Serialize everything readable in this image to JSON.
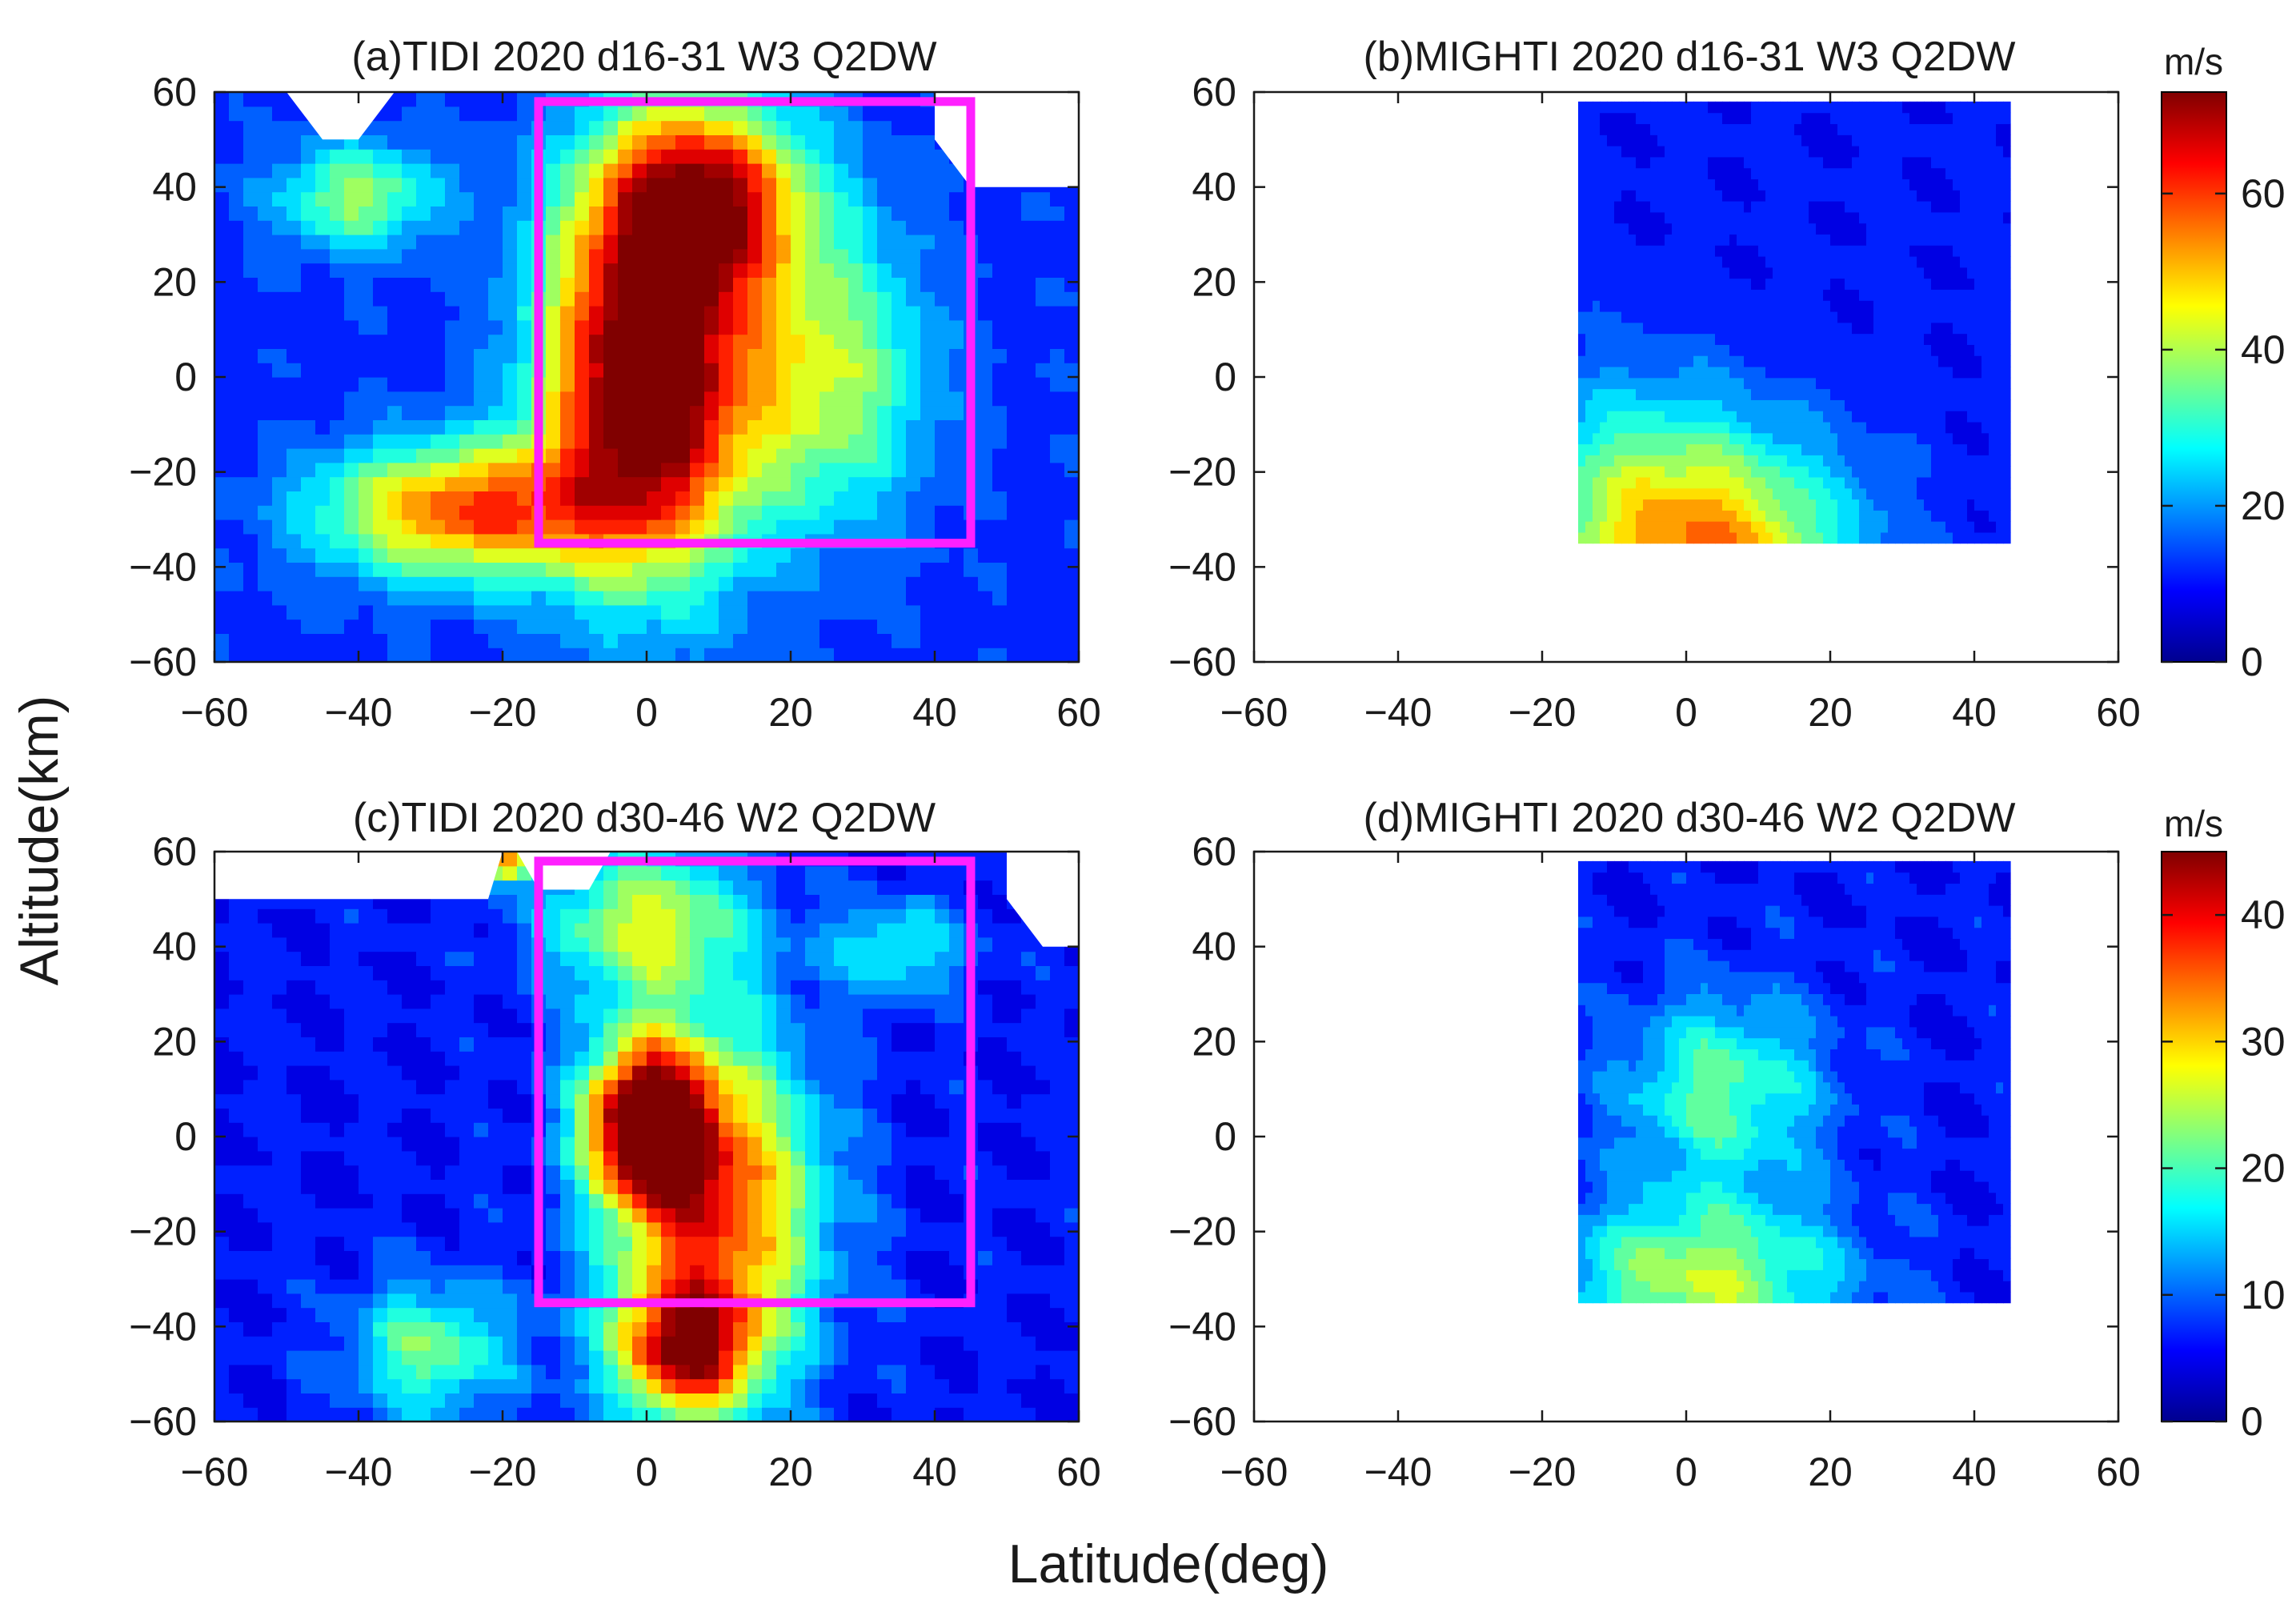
{
  "figure": {
    "shared_xlabel": "Latitude(deg)",
    "shared_ylabel": "Altitude(km)"
  },
  "chart_data": [
    {
      "type": "heatmap",
      "panel": "a",
      "title": "(a)TIDI 2020 d16-31 W3 Q2DW",
      "xlabel": "Latitude(deg)",
      "ylabel": "Altitude(km)",
      "xlim": [
        -60,
        60
      ],
      "ylim": [
        -60,
        60
      ],
      "xticks": [
        "−60",
        "−40",
        "−20",
        "0",
        "20",
        "40",
        "60"
      ],
      "yticks": [
        "60",
        "40",
        "20",
        "0",
        "−20",
        "−40",
        "−60"
      ],
      "colorbar": {
        "unit": "m/s",
        "range": [
          0,
          73
        ],
        "ticks": [
          "60",
          "40",
          "20",
          "0"
        ]
      },
      "blobs": [
        {
          "x": 0,
          "y": 0,
          "sx": 10,
          "sy": 28,
          "amp": 72
        },
        {
          "x": 8,
          "y": 38,
          "sx": 10,
          "sy": 14,
          "amp": 50
        },
        {
          "x": -25,
          "y": -28,
          "sx": 14,
          "sy": 10,
          "amp": 46
        },
        {
          "x": 25,
          "y": 0,
          "sx": 10,
          "sy": 22,
          "amp": 28
        },
        {
          "x": -40,
          "y": 38,
          "sx": 8,
          "sy": 8,
          "amp": 26
        }
      ],
      "base_value": 12,
      "missing_regions": [
        {
          "name": "top-notch-a",
          "points": [
            [
              -50,
              60
            ],
            [
              -45,
              50
            ],
            [
              -40,
              50
            ],
            [
              -35,
              60
            ]
          ]
        },
        {
          "name": "top-right-a",
          "points": [
            [
              40,
              60
            ],
            [
              40,
              50
            ],
            [
              45,
              40
            ],
            [
              60,
              40
            ],
            [
              60,
              60
            ]
          ]
        }
      ],
      "highlight_box": {
        "lat_range": [
          -15,
          45
        ],
        "alt_range": [
          -35,
          58
        ],
        "color": "#ff20ff"
      }
    },
    {
      "type": "heatmap",
      "panel": "b",
      "title": "(b)MIGHTI 2020 d16-31 W3 Q2DW",
      "xlabel": "Latitude(deg)",
      "ylabel": "Altitude(km)",
      "xlim": [
        -60,
        60
      ],
      "ylim": [
        -60,
        60
      ],
      "xticks": [
        "−60",
        "−40",
        "−20",
        "0",
        "20",
        "40",
        "60"
      ],
      "yticks": [
        "60",
        "40",
        "20",
        "0",
        "−20",
        "−40",
        "−60"
      ],
      "colorbar": {
        "unit": "m/s",
        "range": [
          0,
          73
        ],
        "ticks": [
          "60",
          "40",
          "20",
          "0"
        ]
      },
      "data_extent": {
        "lat": [
          -15,
          45
        ],
        "alt": [
          -35,
          58
        ]
      },
      "blobs": [
        {
          "x": 3,
          "y": -38,
          "sx": 14,
          "sy": 18,
          "amp": 42
        },
        {
          "x": -10,
          "y": -20,
          "sx": 12,
          "sy": 18,
          "amp": 12
        }
      ],
      "base_value": 10,
      "missing_regions": [],
      "highlight_box": null
    },
    {
      "type": "heatmap",
      "panel": "c",
      "title": "(c)TIDI 2020 d30-46 W2 Q2DW",
      "xlabel": "Latitude(deg)",
      "ylabel": "Altitude(km)",
      "xlim": [
        -60,
        60
      ],
      "ylim": [
        -60,
        60
      ],
      "xticks": [
        "−60",
        "−40",
        "−20",
        "0",
        "20",
        "40",
        "60"
      ],
      "yticks": [
        "60",
        "40",
        "20",
        "0",
        "−20",
        "−40",
        "−60"
      ],
      "colorbar": {
        "unit": "m/s",
        "range": [
          0,
          45
        ],
        "ticks": [
          "40",
          "30",
          "20",
          "10",
          "0"
        ]
      },
      "blobs": [
        {
          "x": 0,
          "y": 3,
          "sx": 6,
          "sy": 12,
          "amp": 42
        },
        {
          "x": 10,
          "y": -15,
          "sx": 10,
          "sy": 25,
          "amp": 30
        },
        {
          "x": 5,
          "y": -45,
          "sx": 7,
          "sy": 10,
          "amp": 30
        },
        {
          "x": 0,
          "y": 45,
          "sx": 10,
          "sy": 12,
          "amp": 20
        },
        {
          "x": -30,
          "y": -45,
          "sx": 8,
          "sy": 10,
          "amp": 16
        },
        {
          "x": 35,
          "y": 40,
          "sx": 7,
          "sy": 7,
          "amp": 12
        },
        {
          "x": -20,
          "y": 58,
          "sx": 3,
          "sy": 3,
          "amp": 28
        }
      ],
      "base_value": 6,
      "missing_regions": [
        {
          "name": "top-left-c",
          "points": [
            [
              -60,
              60
            ],
            [
              -60,
              50
            ],
            [
              -22,
              50
            ],
            [
              -20,
              60
            ]
          ]
        },
        {
          "name": "top-gap-c",
          "points": [
            [
              -18,
              60
            ],
            [
              -15,
              52
            ],
            [
              -8,
              52
            ],
            [
              -5,
              60
            ]
          ]
        },
        {
          "name": "top-right-c",
          "points": [
            [
              50,
              60
            ],
            [
              50,
              50
            ],
            [
              55,
              40
            ],
            [
              60,
              40
            ],
            [
              60,
              60
            ]
          ]
        }
      ],
      "highlight_box": {
        "lat_range": [
          -15,
          45
        ],
        "alt_range": [
          -35,
          58
        ],
        "color": "#ff20ff"
      }
    },
    {
      "type": "heatmap",
      "panel": "d",
      "title": "(d)MIGHTI 2020 d30-46 W2 Q2DW",
      "xlabel": "Latitude(deg)",
      "ylabel": "Altitude(km)",
      "xlim": [
        -60,
        60
      ],
      "ylim": [
        -60,
        60
      ],
      "xticks": [
        "−60",
        "−40",
        "−20",
        "0",
        "20",
        "40",
        "60"
      ],
      "yticks": [
        "60",
        "40",
        "20",
        "0",
        "−20",
        "−40",
        "−60"
      ],
      "colorbar": {
        "unit": "m/s",
        "range": [
          0,
          45
        ],
        "ticks": [
          "40",
          "30",
          "20",
          "10",
          "0"
        ]
      },
      "data_extent": {
        "lat": [
          -15,
          45
        ],
        "alt": [
          -35,
          58
        ]
      },
      "blobs": [
        {
          "x": 2,
          "y": -30,
          "sx": 14,
          "sy": 12,
          "amp": 19
        },
        {
          "x": 5,
          "y": 10,
          "sx": 10,
          "sy": 14,
          "amp": 15
        }
      ],
      "base_value": 6,
      "missing_regions": [],
      "highlight_box": null
    }
  ]
}
